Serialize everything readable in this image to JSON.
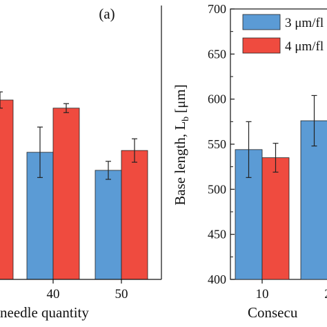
{
  "chart_data": [
    {
      "panel_label": "(a)",
      "type": "bar",
      "xlabel": "needle quantity",
      "categories": [
        "40",
        "50"
      ],
      "series": [
        {
          "values": [
            541,
            521
          ],
          "err": [
            28,
            10
          ]
        },
        {
          "values": [
            590,
            543
          ],
          "err": [
            5,
            13
          ]
        }
      ],
      "partial_bar": {
        "series_index": 1,
        "value": 599,
        "err": 9
      },
      "colors": [
        "#5b9bd5",
        "#ef4b3f"
      ]
    },
    {
      "type": "bar",
      "ylabel": "Base length, L",
      "ylabel_subscript": "b",
      "ylabel_unit": "[μm]",
      "xlabel": "Consecu",
      "ylim": [
        400,
        700
      ],
      "yticks": [
        "400",
        "450",
        "500",
        "550",
        "600",
        "650",
        "700"
      ],
      "categories": [
        "10",
        "2"
      ],
      "series": [
        {
          "name": "3 μm/fl",
          "values": [
            544,
            576
          ],
          "err": [
            31,
            28
          ]
        },
        {
          "name": "4 μm/fl",
          "values": [
            535,
            null
          ],
          "err": [
            16,
            null
          ]
        }
      ],
      "legend": "top-right",
      "colors": [
        "#5b9bd5",
        "#ef4b3f"
      ]
    }
  ]
}
